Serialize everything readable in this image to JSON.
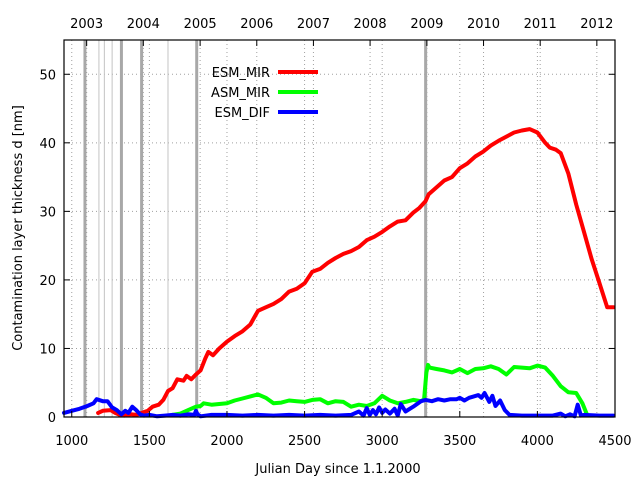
{
  "chart_data": {
    "type": "line",
    "title": "",
    "xlabel": "Julian Day since 1.1.2000",
    "ylabel": "Contamination layer thickness d [nm]",
    "xlim": [
      950,
      4500
    ],
    "ylim": [
      0,
      55
    ],
    "x_ticks": [
      1000,
      1500,
      2000,
      2500,
      3000,
      3500,
      4000,
      4500
    ],
    "y_ticks": [
      0,
      10,
      20,
      30,
      40,
      50
    ],
    "grid": true,
    "legend_position": "top-left-inside",
    "top_axis": {
      "labels": [
        "2003",
        "2004",
        "2005",
        "2006",
        "2007",
        "2008",
        "2009",
        "2010",
        "2011",
        "2012"
      ],
      "values": [
        1096,
        1461,
        1827,
        2192,
        2557,
        2922,
        3288,
        3653,
        4018,
        4383
      ]
    },
    "event_lines_thick": [
      1085,
      1320,
      1450,
      1805,
      3280
    ],
    "event_lines_thin": [
      1175,
      1210,
      1260,
      1620
    ],
    "series": [
      {
        "name": "ESM_MIR",
        "color": "#ff0000",
        "x": [
          1170,
          1200,
          1250,
          1280,
          1310,
          1340,
          1380,
          1420,
          1450,
          1490,
          1520,
          1560,
          1590,
          1620,
          1650,
          1680,
          1720,
          1740,
          1770,
          1800,
          1830,
          1860,
          1880,
          1910,
          1950,
          2000,
          2050,
          2100,
          2150,
          2200,
          2250,
          2300,
          2350,
          2400,
          2450,
          2500,
          2550,
          2600,
          2650,
          2700,
          2750,
          2800,
          2850,
          2900,
          2950,
          3000,
          3050,
          3100,
          3150,
          3200,
          3240,
          3280,
          3300,
          3350,
          3400,
          3450,
          3500,
          3550,
          3600,
          3650,
          3700,
          3750,
          3800,
          3850,
          3900,
          3950,
          4000,
          4050,
          4080,
          4120,
          4150,
          4200,
          4250,
          4300,
          4350,
          4400,
          4450,
          4490
        ],
        "values": [
          0.6,
          0.9,
          1.0,
          0.6,
          0.3,
          0.2,
          0.4,
          0.3,
          0.6,
          0.9,
          1.5,
          1.8,
          2.5,
          3.8,
          4.2,
          5.5,
          5.3,
          6.0,
          5.5,
          6.2,
          6.8,
          8.5,
          9.5,
          9.0,
          10.0,
          11.0,
          11.8,
          12.5,
          13.5,
          15.5,
          16.0,
          16.5,
          17.2,
          18.3,
          18.7,
          19.5,
          21.2,
          21.6,
          22.5,
          23.2,
          23.8,
          24.2,
          24.8,
          25.8,
          26.3,
          27.0,
          27.8,
          28.5,
          28.7,
          29.8,
          30.5,
          31.5,
          32.5,
          33.5,
          34.5,
          35.0,
          36.3,
          37.0,
          38.0,
          38.7,
          39.6,
          40.3,
          40.9,
          41.5,
          41.8,
          42.0,
          41.5,
          40.0,
          39.3,
          39.0,
          38.5,
          35.5,
          31.0,
          27.0,
          23.0,
          19.5,
          16.0,
          16.0
        ],
        "stroke_width": 4
      },
      {
        "name": "ASM_MIR",
        "color": "#00ff00",
        "x": [
          1650,
          1700,
          1750,
          1800,
          1830,
          1850,
          1900,
          1950,
          2000,
          2050,
          2100,
          2150,
          2200,
          2250,
          2300,
          2350,
          2400,
          2450,
          2500,
          2550,
          2600,
          2650,
          2700,
          2750,
          2800,
          2850,
          2900,
          2950,
          3000,
          3050,
          3100,
          3150,
          3200,
          3250,
          3270,
          3285,
          3295,
          3305,
          3350,
          3400,
          3450,
          3500,
          3550,
          3600,
          3650,
          3700,
          3750,
          3800,
          3850,
          3900,
          3950,
          4000,
          4050,
          4100,
          4150,
          4200,
          4250,
          4290,
          4320
        ],
        "values": [
          0.3,
          0.5,
          1.0,
          1.5,
          1.6,
          2.0,
          1.8,
          1.9,
          2.0,
          2.4,
          2.7,
          3.0,
          3.3,
          2.8,
          2.0,
          2.1,
          2.4,
          2.3,
          2.2,
          2.5,
          2.6,
          2.0,
          2.3,
          2.2,
          1.5,
          1.8,
          1.6,
          2.0,
          3.1,
          2.4,
          2.0,
          2.2,
          2.5,
          2.3,
          2.6,
          6.5,
          7.6,
          7.2,
          7.0,
          6.8,
          6.5,
          7.0,
          6.4,
          7.0,
          7.1,
          7.4,
          7.0,
          6.2,
          7.3,
          7.2,
          7.1,
          7.5,
          7.2,
          6.0,
          4.5,
          3.6,
          3.5,
          2.0,
          0.3
        ],
        "stroke_width": 4
      },
      {
        "name": "ESM_DIF",
        "color": "#0000ff",
        "x": [
          950,
          1000,
          1050,
          1100,
          1140,
          1160,
          1200,
          1230,
          1260,
          1290,
          1320,
          1345,
          1365,
          1390,
          1415,
          1440,
          1465,
          1500,
          1550,
          1600,
          1650,
          1700,
          1750,
          1790,
          1800,
          1810,
          1830,
          1900,
          2000,
          2100,
          2200,
          2300,
          2400,
          2500,
          2600,
          2700,
          2800,
          2850,
          2880,
          2900,
          2920,
          2940,
          2960,
          2980,
          3000,
          3020,
          3050,
          3080,
          3100,
          3120,
          3150,
          3200,
          3250,
          3280,
          3320,
          3360,
          3400,
          3440,
          3480,
          3500,
          3530,
          3560,
          3590,
          3620,
          3640,
          3660,
          3690,
          3710,
          3730,
          3760,
          3790,
          3820,
          3900,
          4000,
          4100,
          4150,
          4180,
          4210,
          4240,
          4260,
          4280,
          4300,
          4400,
          4490
        ],
        "values": [
          0.6,
          0.9,
          1.2,
          1.6,
          2.0,
          2.6,
          2.3,
          2.3,
          1.4,
          1.0,
          0.4,
          0.9,
          0.6,
          1.5,
          1.0,
          0.4,
          0.2,
          0.3,
          0.1,
          0.2,
          0.3,
          0.2,
          0.4,
          0.3,
          0.9,
          0.4,
          0.1,
          0.3,
          0.3,
          0.2,
          0.3,
          0.2,
          0.3,
          0.2,
          0.3,
          0.2,
          0.3,
          0.8,
          0.2,
          1.3,
          0.3,
          1.0,
          0.4,
          1.4,
          0.6,
          1.1,
          0.5,
          1.2,
          0.2,
          1.9,
          0.8,
          1.5,
          2.3,
          2.5,
          2.3,
          2.6,
          2.4,
          2.6,
          2.6,
          2.8,
          2.4,
          2.8,
          3.0,
          3.2,
          2.8,
          3.5,
          2.2,
          3.1,
          1.6,
          2.4,
          1.0,
          0.3,
          0.2,
          0.2,
          0.2,
          0.5,
          0.1,
          0.4,
          0.1,
          1.8,
          0.2,
          0.3,
          0.2,
          0.2
        ],
        "stroke_width": 4
      }
    ]
  }
}
